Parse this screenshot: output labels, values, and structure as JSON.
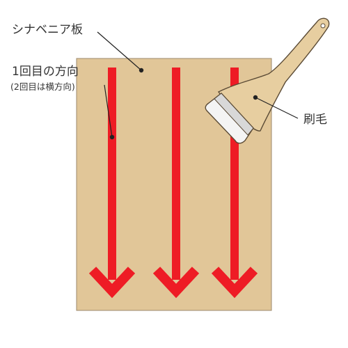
{
  "labels": {
    "board": "シナベニア板",
    "direction_main": "1回目の方向",
    "direction_sub": "(2回目は横方向)",
    "brush": "刷毛"
  },
  "colors": {
    "board_fill": "#e1c698",
    "board_stroke": "#9c8a6c",
    "arrow": "#ee1c25",
    "leader": "#222222",
    "text": "#333333",
    "brush_handle": "#e7cea0",
    "brush_ferrule": "#d8d8d8",
    "brush_bristle": "#f4f4f4",
    "brush_outline": "#5a4a35"
  },
  "arrows": {
    "count": 3,
    "direction": "down"
  },
  "icons": {
    "brush": "paint-brush-icon",
    "arrow": "arrow-down-icon"
  }
}
